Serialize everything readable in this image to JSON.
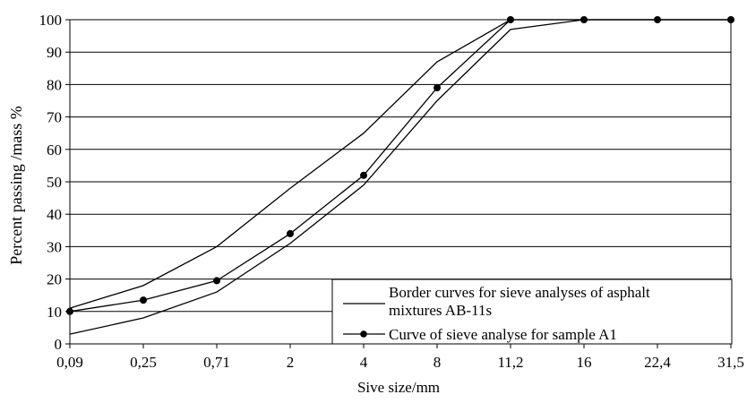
{
  "chart_data": {
    "type": "line",
    "title": "",
    "xlabel": "Sive size/mm",
    "ylabel": "Percent passing /mass %",
    "categories": [
      "0,09",
      "0,25",
      "0,71",
      "2",
      "4",
      "8",
      "11,2",
      "16",
      "22,4",
      "31,5"
    ],
    "ylim": [
      0,
      100
    ],
    "yticks": [
      "0",
      "10",
      "20",
      "30",
      "40",
      "50",
      "60",
      "70",
      "80",
      "90",
      "100"
    ],
    "grid": true,
    "legend_position": "bottom-right",
    "legend": [
      "Border curves for sieve analyses of asphalt mixtures AB-11s",
      "Curve of sieve analyse for sample A1"
    ],
    "series": [
      {
        "name": "Border curves for sieve analyses of asphalt mixtures AB-11s",
        "style": "line",
        "color": "#000000",
        "x": [
          "0,09",
          "0,25",
          "0,71",
          "2",
          "4",
          "8",
          "11,2",
          "16",
          "22,4",
          "31,5"
        ],
        "values": [
          11,
          18,
          30,
          48,
          65,
          87,
          100,
          100,
          100,
          100
        ]
      },
      {
        "name": "Border curves for sieve analyses of asphalt mixtures AB-11s",
        "style": "line",
        "color": "#000000",
        "x": [
          "0,09",
          "0,25",
          "0,71",
          "2",
          "4",
          "8",
          "11,2",
          "16",
          "22,4",
          "31,5"
        ],
        "values": [
          3,
          8,
          16,
          31,
          49,
          75,
          97,
          100,
          100,
          100
        ]
      },
      {
        "name": "Curve of sieve analyse for sample A1",
        "style": "line-markers",
        "color": "#000000",
        "x": [
          "0,09",
          "0,25",
          "0,71",
          "2",
          "4",
          "8",
          "11,2",
          "16",
          "22,4",
          "31,5"
        ],
        "values": [
          10,
          13.5,
          19.5,
          34,
          52,
          79,
          100,
          100,
          100,
          100
        ]
      }
    ]
  }
}
